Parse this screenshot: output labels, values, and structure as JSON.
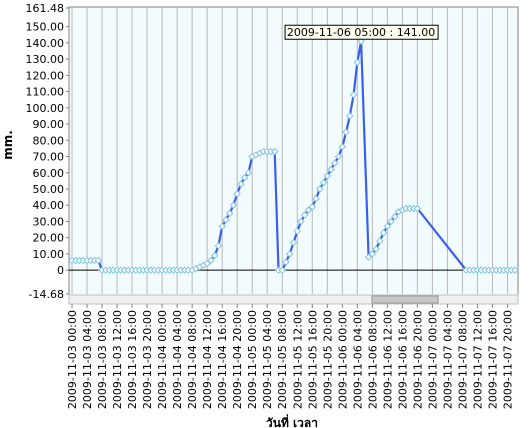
{
  "chart_data": {
    "type": "line",
    "y_label": "mm.",
    "x_label": "วันที่ เวลา",
    "annotation": "2009-11-06 05:00 : 141.00",
    "color": "#3a5ff0",
    "marker_color": "#7fc4e0",
    "grid": "x",
    "ylim": [
      -14.68,
      161.48
    ],
    "yticks": [
      161.48,
      {
        "value": 150,
        "label": "150.00"
      },
      {
        "value": 140,
        "label": "140.00"
      },
      {
        "value": 130,
        "label": "130.00"
      },
      {
        "value": 120,
        "label": "120.00"
      },
      {
        "value": 110,
        "label": "110.00"
      },
      {
        "value": 100,
        "label": "100.00"
      },
      {
        "value": 90,
        "label": "90.00"
      },
      {
        "value": 80,
        "label": "80.00"
      },
      {
        "value": 70,
        "label": "70.00"
      },
      {
        "value": 60,
        "label": "60.00"
      },
      {
        "value": 50,
        "label": "50.00"
      },
      {
        "value": 40,
        "label": "40.00"
      },
      {
        "value": 30,
        "label": "30.00"
      },
      {
        "value": 20,
        "label": "20.00"
      },
      {
        "value": 10,
        "label": "10.00"
      },
      {
        "value": 0,
        "label": "0"
      },
      -14.68
    ],
    "xlim": [
      "2009-11-03 00:00",
      "2009-11-07 22:00"
    ],
    "xticks": [
      "2009-11-03 00:00",
      "2009-11-03 04:00",
      "2009-11-03 08:00",
      "2009-11-03 12:00",
      "2009-11-03 16:00",
      "2009-11-03 20:00",
      "2009-11-04 00:00",
      "2009-11-04 04:00",
      "2009-11-04 08:00",
      "2009-11-04 12:00",
      "2009-11-04 16:00",
      "2009-11-04 20:00",
      "2009-11-05 00:00",
      "2009-11-05 04:00",
      "2009-11-05 08:00",
      "2009-11-05 12:00",
      "2009-11-05 16:00",
      "2009-11-05 20:00",
      "2009-11-06 00:00",
      "2009-11-06 04:00",
      "2009-11-06 08:00",
      "2009-11-06 12:00",
      "2009-11-06 16:00",
      "2009-11-06 20:00",
      "2009-11-07 00:00",
      "2009-11-07 04:00",
      "2009-11-07 08:00",
      "2009-11-07 12:00",
      "2009-11-07 16:00",
      "2009-11-07 20:00"
    ],
    "x": [
      "2009-11-03 00:00",
      "2009-11-03 01:00",
      "2009-11-03 02:00",
      "2009-11-03 03:00",
      "2009-11-03 04:00",
      "2009-11-03 05:00",
      "2009-11-03 06:00",
      "2009-11-03 07:00",
      "2009-11-03 08:00",
      "2009-11-03 09:00",
      "2009-11-03 10:00",
      "2009-11-03 11:00",
      "2009-11-03 12:00",
      "2009-11-03 13:00",
      "2009-11-03 14:00",
      "2009-11-03 15:00",
      "2009-11-03 16:00",
      "2009-11-03 17:00",
      "2009-11-03 18:00",
      "2009-11-03 19:00",
      "2009-11-03 20:00",
      "2009-11-03 21:00",
      "2009-11-03 22:00",
      "2009-11-03 23:00",
      "2009-11-04 00:00",
      "2009-11-04 01:00",
      "2009-11-04 02:00",
      "2009-11-04 03:00",
      "2009-11-04 04:00",
      "2009-11-04 05:00",
      "2009-11-04 06:00",
      "2009-11-04 07:00",
      "2009-11-04 08:00",
      "2009-11-04 09:00",
      "2009-11-04 10:00",
      "2009-11-04 11:00",
      "2009-11-04 12:00",
      "2009-11-04 13:00",
      "2009-11-04 14:00",
      "2009-11-04 15:00",
      "2009-11-04 16:00",
      "2009-11-04 17:00",
      "2009-11-04 18:00",
      "2009-11-04 19:00",
      "2009-11-04 20:00",
      "2009-11-04 21:00",
      "2009-11-04 22:00",
      "2009-11-04 23:00",
      "2009-11-05 00:00",
      "2009-11-05 01:00",
      "2009-11-05 02:00",
      "2009-11-05 03:00",
      "2009-11-05 04:00",
      "2009-11-05 05:00",
      "2009-11-05 06:00",
      "2009-11-05 07:00",
      "2009-11-05 08:00",
      "2009-11-05 09:00",
      "2009-11-05 10:00",
      "2009-11-05 11:00",
      "2009-11-05 12:00",
      "2009-11-05 13:00",
      "2009-11-05 14:00",
      "2009-11-05 15:00",
      "2009-11-05 16:00",
      "2009-11-05 17:00",
      "2009-11-05 18:00",
      "2009-11-05 19:00",
      "2009-11-05 20:00",
      "2009-11-05 21:00",
      "2009-11-05 22:00",
      "2009-11-05 23:00",
      "2009-11-06 00:00",
      "2009-11-06 01:00",
      "2009-11-06 02:00",
      "2009-11-06 03:00",
      "2009-11-06 04:00",
      "2009-11-06 05:00",
      "2009-11-06 07:00",
      "2009-11-06 08:00",
      "2009-11-06 09:00",
      "2009-11-06 10:00",
      "2009-11-06 11:00",
      "2009-11-06 12:00",
      "2009-11-06 13:00",
      "2009-11-06 14:00",
      "2009-11-06 15:00",
      "2009-11-06 16:00",
      "2009-11-06 17:00",
      "2009-11-06 18:00",
      "2009-11-06 19:00",
      "2009-11-06 20:00",
      "2009-11-07 09:00",
      "2009-11-07 10:00",
      "2009-11-07 11:00",
      "2009-11-07 12:00",
      "2009-11-07 13:00",
      "2009-11-07 14:00",
      "2009-11-07 15:00",
      "2009-11-07 16:00",
      "2009-11-07 17:00",
      "2009-11-07 18:00",
      "2009-11-07 19:00",
      "2009-11-07 20:00",
      "2009-11-07 21:00",
      "2009-11-07 22:00"
    ],
    "values": [
      6,
      6,
      6,
      6,
      6,
      6,
      6,
      6,
      0,
      0,
      0,
      0,
      0,
      0,
      0,
      0,
      0,
      0,
      0,
      0,
      0,
      0,
      0,
      0,
      0,
      0,
      0,
      0,
      0,
      0,
      0,
      0,
      0,
      1,
      2,
      3,
      4,
      6,
      9,
      15,
      27,
      31,
      35,
      40,
      47,
      53,
      57,
      60,
      70,
      71,
      72,
      73,
      73,
      73,
      73,
      0,
      0,
      5,
      10,
      17,
      24,
      30,
      34,
      37,
      39,
      44,
      50,
      54,
      58,
      62,
      66,
      70,
      76,
      85,
      95,
      108,
      128,
      141,
      8,
      10,
      13,
      18,
      23,
      27,
      30,
      33,
      36,
      37,
      38,
      38,
      38,
      38,
      0,
      0,
      0,
      0,
      0,
      0,
      0,
      0,
      0,
      0,
      0,
      0,
      0,
      0
    ]
  }
}
